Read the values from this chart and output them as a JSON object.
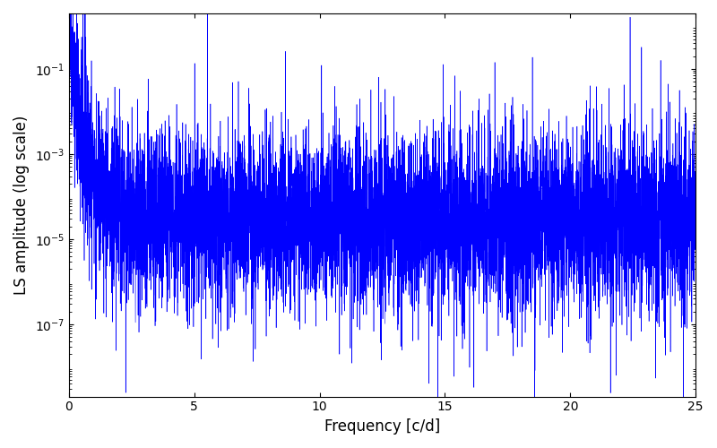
{
  "title": "",
  "xlabel": "Frequency [c/d]",
  "ylabel": "LS amplitude (log scale)",
  "xlim": [
    0,
    25
  ],
  "ylim": [
    2e-09,
    2.0
  ],
  "line_color": "#0000ff",
  "background_color": "#ffffff",
  "n_points": 8000,
  "freq_max": 25.0,
  "seed": 42,
  "xticks": [
    0,
    5,
    10,
    15,
    20,
    25
  ],
  "yticks": [
    1e-07,
    1e-05,
    0.001,
    0.1
  ],
  "figsize": [
    8.0,
    5.0
  ],
  "dpi": 100,
  "linewidth": 0.4
}
